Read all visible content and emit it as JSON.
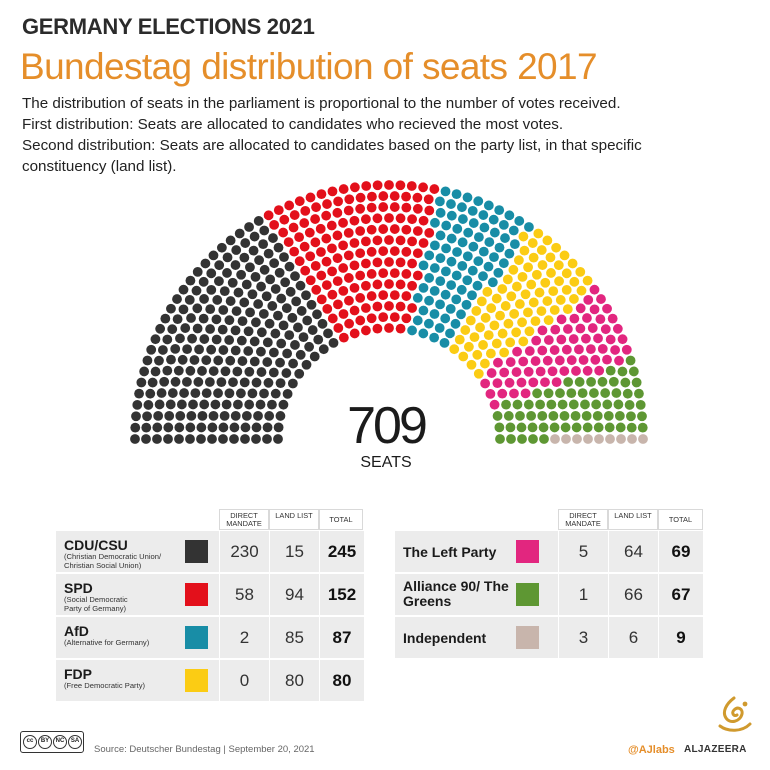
{
  "header": {
    "kicker": "GERMANY ELECTIONS 2021",
    "title": "Bundestag distribution of seats 2017",
    "description": [
      "The distribution of seats in the parliament is proportional to the number of votes received.",
      "First distribution: Seats are allocated to candidates who recieved the most votes.",
      "Second distribution: Seats are allocated to candidates based on the party list, in that specific",
      "constituency (land list)."
    ]
  },
  "total": {
    "value": "709",
    "label": "SEATS"
  },
  "table_headers": {
    "direct": "DIRECT MANDATE",
    "land": "LAND LIST",
    "total": "TOTAL"
  },
  "chart_data": {
    "type": "parliament",
    "title": "Bundestag distribution of seats 2017",
    "total_seats": 709,
    "parties": [
      {
        "name": "CDU/CSU",
        "full_name": "(Christian Democratic Union/ Christian Social Union)",
        "direct_mandate": 230,
        "land_list": 15,
        "total": 245,
        "color": "#333333"
      },
      {
        "name": "SPD",
        "full_name": "(Social Democratic Party of Germany)",
        "direct_mandate": 58,
        "land_list": 94,
        "total": 152,
        "color": "#e3101b"
      },
      {
        "name": "AfD",
        "full_name": "(Alternative for Germany)",
        "direct_mandate": 2,
        "land_list": 85,
        "total": 87,
        "color": "#188da6"
      },
      {
        "name": "FDP",
        "full_name": "(Free Democratic Party)",
        "direct_mandate": 0,
        "land_list": 80,
        "total": 80,
        "color": "#fbcc14"
      },
      {
        "name": "The Left Party",
        "full_name": "",
        "direct_mandate": 5,
        "land_list": 64,
        "total": 69,
        "color": "#e2267f"
      },
      {
        "name": "Alliance 90/ The Greens",
        "full_name": "",
        "direct_mandate": 1,
        "land_list": 66,
        "total": 67,
        "color": "#5e9733"
      },
      {
        "name": "Independent",
        "full_name": "",
        "direct_mandate": 3,
        "land_list": 6,
        "total": 9,
        "color": "#c8b5ac"
      }
    ]
  },
  "footer": {
    "license": [
      "cc",
      "BY",
      "NC",
      "SA"
    ],
    "source": "Source: Deutscher Bundestag  |  September 20, 2021",
    "handle": "@AJlabs",
    "brand": "ALJAZEERA"
  }
}
